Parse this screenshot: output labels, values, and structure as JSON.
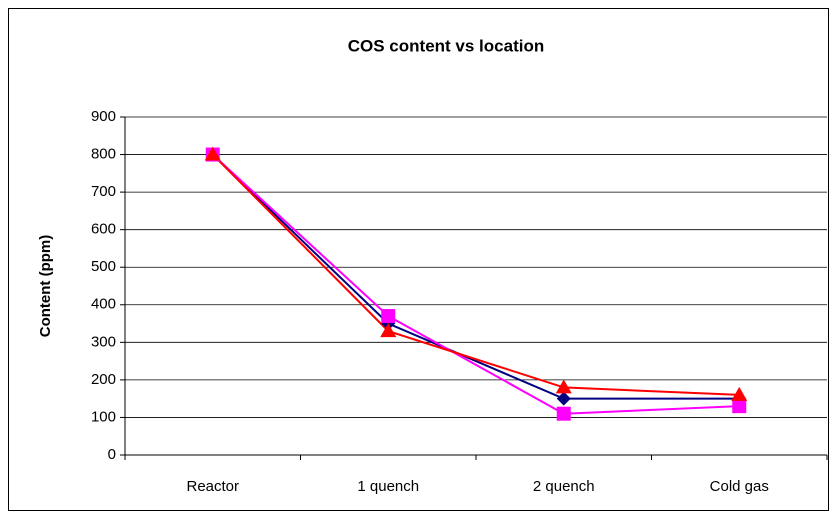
{
  "chart_data": {
    "type": "line",
    "title": "COS content vs location",
    "ylabel": "Content (ppm)",
    "categories": [
      "Reactor",
      "1 quench",
      "2 quench",
      "Cold gas"
    ],
    "series": [
      {
        "color": "#000080",
        "marker": "diamond",
        "values": [
          800,
          350,
          150,
          150
        ]
      },
      {
        "color": "#ff00ff",
        "marker": "square",
        "values": [
          800,
          370,
          110,
          130
        ]
      },
      {
        "color": "#ff0000",
        "marker": "triangle",
        "values": [
          800,
          330,
          180,
          160
        ]
      }
    ],
    "ylim": [
      0,
      900
    ],
    "yticks": [
      0,
      100,
      200,
      300,
      400,
      500,
      600,
      700,
      800,
      900
    ],
    "grid": true
  }
}
